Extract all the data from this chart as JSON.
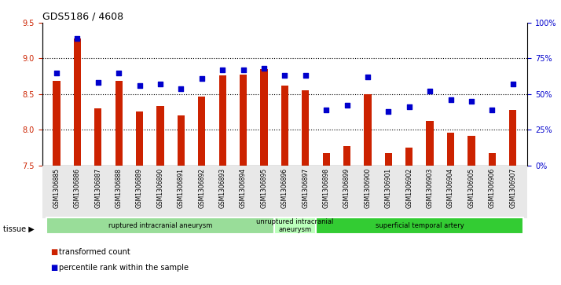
{
  "title": "GDS5186 / 4608",
  "samples": [
    "GSM1306885",
    "GSM1306886",
    "GSM1306887",
    "GSM1306888",
    "GSM1306889",
    "GSM1306890",
    "GSM1306891",
    "GSM1306892",
    "GSM1306893",
    "GSM1306894",
    "GSM1306895",
    "GSM1306896",
    "GSM1306897",
    "GSM1306898",
    "GSM1306899",
    "GSM1306900",
    "GSM1306901",
    "GSM1306902",
    "GSM1306903",
    "GSM1306904",
    "GSM1306905",
    "GSM1306906",
    "GSM1306907"
  ],
  "bar_values": [
    8.69,
    9.28,
    8.3,
    8.69,
    8.26,
    8.33,
    8.2,
    8.47,
    8.76,
    8.77,
    8.85,
    8.62,
    8.55,
    7.67,
    7.77,
    8.5,
    7.67,
    7.75,
    8.12,
    7.96,
    7.91,
    7.67,
    8.28
  ],
  "dot_values": [
    65,
    89,
    58,
    65,
    56,
    57,
    54,
    61,
    67,
    67,
    68,
    63,
    63,
    39,
    42,
    62,
    38,
    41,
    52,
    46,
    45,
    39,
    57
  ],
  "ylim_left": [
    7.5,
    9.5
  ],
  "ylim_right": [
    0,
    100
  ],
  "yticks_left": [
    7.5,
    8.0,
    8.5,
    9.0,
    9.5
  ],
  "yticks_right": [
    0,
    25,
    50,
    75,
    100
  ],
  "ytick_labels_right": [
    "0%",
    "25%",
    "50%",
    "75%",
    "100%"
  ],
  "grid_values": [
    8.0,
    8.5,
    9.0
  ],
  "bar_color": "#cc2200",
  "dot_color": "#0000cc",
  "plot_bg_color": "#ffffff",
  "tissue_groups": [
    {
      "label": "ruptured intracranial aneurysm",
      "start": 0,
      "end": 11,
      "color": "#99dd99"
    },
    {
      "label": "unruptured intracranial\naneurysm",
      "start": 11,
      "end": 13,
      "color": "#bbffbb"
    },
    {
      "label": "superficial temporal artery",
      "start": 13,
      "end": 23,
      "color": "#33cc33"
    }
  ],
  "legend_items": [
    {
      "label": "transformed count",
      "color": "#cc2200"
    },
    {
      "label": "percentile rank within the sample",
      "color": "#0000cc"
    }
  ],
  "tissue_label": "tissue"
}
